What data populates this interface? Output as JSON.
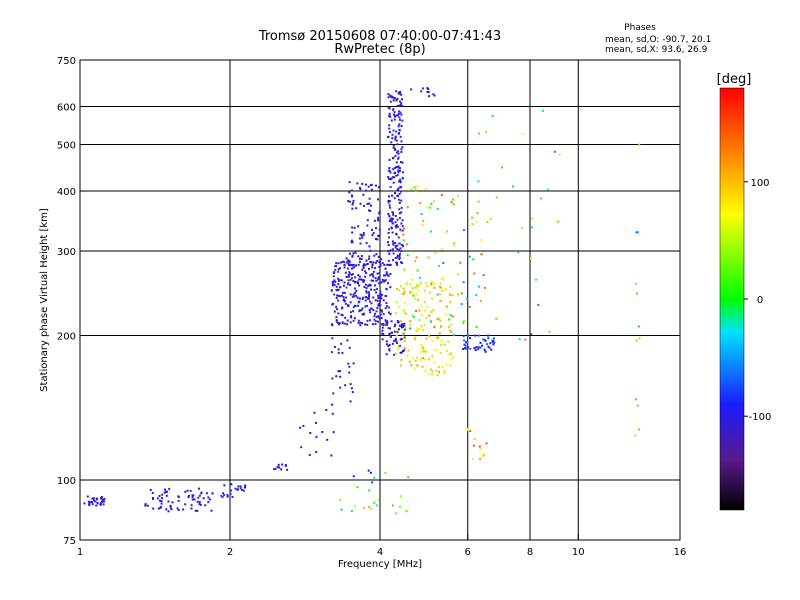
{
  "chart_data": {
    "type": "scatter",
    "title": "Tromsø 20150608 07:40:00-07:41:43",
    "subtitle": "RwPretec (8p)",
    "xlabel": "Frequency [MHz]",
    "ylabel": "Stationary phase Virtual Height [km]",
    "xscale": "log",
    "yscale": "log",
    "xlim": [
      1,
      16
    ],
    "ylim": [
      75,
      750
    ],
    "x_ticks": [
      1,
      2,
      4,
      6,
      8,
      10,
      16
    ],
    "x_grid": [
      2,
      4,
      6,
      8,
      10
    ],
    "y_ticks": [
      75,
      100,
      200,
      300,
      400,
      500,
      600,
      750
    ],
    "y_grid": [
      100,
      200,
      300,
      400,
      500,
      600
    ],
    "grid": true,
    "legend": {
      "title": "Phases",
      "line_o": "mean, sd,O: -90.7, 20.1",
      "line_x": "mean, sd,X:  93.6, 26.9"
    },
    "colorbar": {
      "label": "[deg]",
      "range": [
        -180,
        180
      ],
      "ticks": [
        100,
        0,
        -100
      ]
    },
    "clusters": [
      {
        "x": [
          1.02,
          1.12
        ],
        "y": [
          88,
          93
        ],
        "n": 30,
        "phase": [
          -120,
          -90
        ]
      },
      {
        "x": [
          1.35,
          1.85
        ],
        "y": [
          86,
          96
        ],
        "n": 70,
        "phase": [
          -125,
          -85
        ]
      },
      {
        "x": [
          1.92,
          2.15
        ],
        "y": [
          92,
          99
        ],
        "n": 22,
        "phase": [
          -115,
          -80
        ]
      },
      {
        "x": [
          2.45,
          2.65
        ],
        "y": [
          105,
          108
        ],
        "n": 10,
        "phase": [
          -105,
          -85
        ]
      },
      {
        "x": [
          2.75,
          3.25
        ],
        "y": [
          110,
          145
        ],
        "n": 16,
        "phase": [
          -125,
          -95
        ]
      },
      {
        "x": [
          3.2,
          3.55
        ],
        "y": [
          145,
          200
        ],
        "n": 25,
        "phase": [
          -125,
          -95
        ]
      },
      {
        "x": [
          3.2,
          4.2
        ],
        "y": [
          210,
          290
        ],
        "n": 320,
        "phase": [
          -130,
          -80
        ]
      },
      {
        "x": [
          3.45,
          4.0
        ],
        "y": [
          280,
          420
        ],
        "n": 90,
        "phase": [
          -125,
          -85
        ]
      },
      {
        "x": [
          4.15,
          4.45
        ],
        "y": [
          280,
          650
        ],
        "n": 230,
        "phase": [
          -130,
          -80
        ]
      },
      {
        "x": [
          4.0,
          4.5
        ],
        "y": [
          180,
          215
        ],
        "n": 60,
        "phase": [
          -125,
          -85
        ]
      },
      {
        "x": [
          4.6,
          5.2
        ],
        "y": [
          630,
          660
        ],
        "n": 10,
        "phase": [
          -120,
          -95
        ]
      },
      {
        "x": [
          4.3,
          5.6
        ],
        "y": [
          165,
          260
        ],
        "n": 150,
        "phase": [
          40,
          120
        ]
      },
      {
        "x": [
          4.4,
          6.6
        ],
        "y": [
          200,
          420
        ],
        "n": 90,
        "phase": [
          -70,
          150
        ]
      },
      {
        "x": [
          5.8,
          6.8
        ],
        "y": [
          185,
          200
        ],
        "n": 45,
        "phase": [
          -110,
          -60
        ]
      },
      {
        "x": [
          5.9,
          6.6
        ],
        "y": [
          105,
          130
        ],
        "n": 12,
        "phase": [
          50,
          150
        ]
      },
      {
        "x": [
          6.0,
          9.2
        ],
        "y": [
          190,
          590
        ],
        "n": 30,
        "phase": [
          -80,
          150
        ]
      },
      {
        "x": [
          3.3,
          4.6
        ],
        "y": [
          85,
          105
        ],
        "n": 25,
        "phase": [
          -120,
          130
        ]
      },
      {
        "x": [
          13.0,
          13.3
        ],
        "y": [
          110,
          540
        ],
        "n": 12,
        "phase": [
          -80,
          120
        ]
      }
    ]
  }
}
